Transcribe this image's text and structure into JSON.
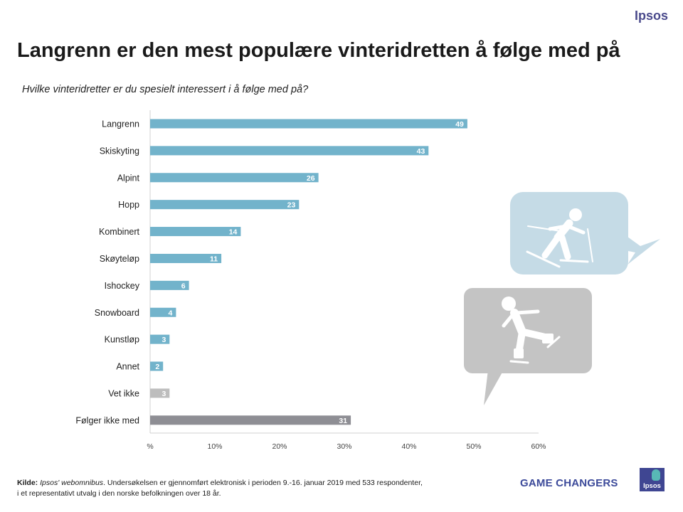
{
  "brand": {
    "logo_top": "Ipsos",
    "tagline": "GAME CHANGERS",
    "logo_box_text": "Ipsos",
    "colors": {
      "bar": "#72b3cb",
      "bar_dont_know": "#bdbdbd",
      "bar_not_following": "#8e8e94",
      "bubble_light": "#c5dbe6",
      "bubble_gray": "#c4c4c4"
    }
  },
  "page": {
    "title": "Langrenn er den mest populære vinteridretten å følge med på",
    "subtitle": "Hvilke vinteridretter er du spesielt interessert i å følge med på?"
  },
  "chart_data": {
    "type": "bar",
    "orientation": "horizontal",
    "title": "Langrenn er den mest populære vinteridretten å følge med på",
    "subtitle": "Hvilke vinteridretter er du spesielt interessert i å følge med på?",
    "xlabel": "",
    "ylabel": "",
    "xlim": [
      0,
      60
    ],
    "x_ticks": [
      0,
      10,
      20,
      30,
      40,
      50,
      60
    ],
    "x_tick_labels": [
      "%",
      "10%",
      "20%",
      "30%",
      "40%",
      "50%",
      "60%"
    ],
    "categories": [
      "Langrenn",
      "Skiskyting",
      "Alpint",
      "Hopp",
      "Kombinert",
      "Skøyteløp",
      "Ishockey",
      "Snowboard",
      "Kunstløp",
      "Annet",
      "Vet ikke",
      "Følger ikke med"
    ],
    "values": [
      49,
      43,
      26,
      23,
      14,
      11,
      6,
      4,
      3,
      2,
      3,
      31
    ],
    "value_labels": [
      "49",
      "43",
      "26",
      "23",
      "14",
      "11",
      "6",
      "4",
      "3",
      "2",
      "3",
      "31"
    ],
    "bar_colors": [
      "#72b3cb",
      "#72b3cb",
      "#72b3cb",
      "#72b3cb",
      "#72b3cb",
      "#72b3cb",
      "#72b3cb",
      "#72b3cb",
      "#72b3cb",
      "#72b3cb",
      "#bdbdbd",
      "#8e8e94"
    ],
    "grid": false,
    "legend": "none"
  },
  "footer": {
    "source_label": "Kilde:",
    "source_name": "Ipsos' webomnibus",
    "line1_rest": ". Undersøkelsen er gjennomført elektronisk i perioden 9.-16. januar 2019 med 533 respondenter,",
    "line2": "i et representativt utvalg i den norske befolkningen over 18 år."
  },
  "illustrations": {
    "top_bubble_icon": "cross-country-skier-icon",
    "bottom_bubble_icon": "speed-skater-icon"
  }
}
